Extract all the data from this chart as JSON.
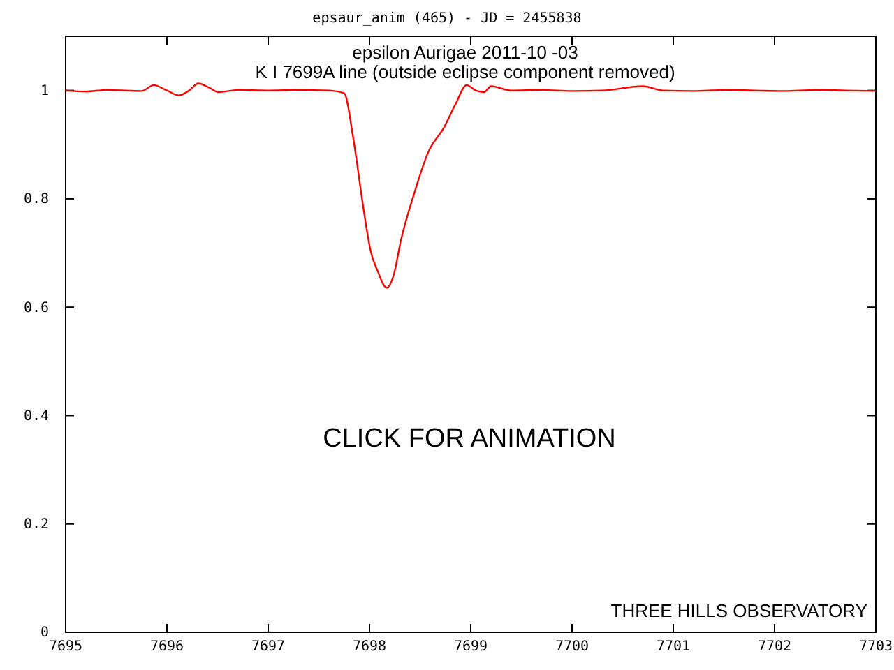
{
  "chart_data": {
    "type": "line",
    "title": "epsaur_anim (465) - JD = 2455838",
    "annotations": [
      "epsilon Aurigae 2011-10 -03",
      "K I 7699A line (outside eclipse component removed)",
      "CLICK FOR ANIMATION",
      "THREE HILLS OBSERVATORY"
    ],
    "series": [
      {
        "color": "#ff0000",
        "x": [
          7695,
          7695.2,
          7695.4,
          7695.6,
          7695.75,
          7695.87,
          7696,
          7696.12,
          7696.22,
          7696.31,
          7696.42,
          7696.51,
          7696.7,
          7697,
          7697.3,
          7697.6,
          7697.75,
          7697.84,
          7697.94,
          7698.01,
          7698.08,
          7698.17,
          7698.24,
          7698.31,
          7698.44,
          7698.58,
          7698.74,
          7698.85,
          7698.96,
          7699.05,
          7699.13,
          7699.2,
          7699.4,
          7699.7,
          7700,
          7700.3,
          7700.7,
          7700.9,
          7701.2,
          7701.5,
          7701.8,
          7702.1,
          7702.4,
          7702.7,
          7703
        ],
        "values": [
          1.0,
          0.998,
          1.001,
          1.0,
          0.999,
          1.01,
          1.0,
          0.991,
          1.0,
          1.013,
          1.005,
          0.997,
          1.001,
          1.0,
          1.001,
          1.0,
          0.995,
          0.912,
          0.783,
          0.705,
          0.667,
          0.636,
          0.66,
          0.723,
          0.809,
          0.886,
          0.933,
          0.975,
          1.01,
          1.0,
          0.997,
          1.008,
          1.0,
          1.001,
          0.999,
          1.0,
          1.008,
          1.0,
          0.999,
          1.001,
          1.0,
          0.999,
          1.001,
          1.0,
          0.999
        ]
      }
    ],
    "xlim": [
      7695,
      7703
    ],
    "xticks": [
      7695,
      7696,
      7697,
      7698,
      7699,
      7700,
      7701,
      7702,
      7703
    ],
    "ylim": [
      0,
      1.1
    ],
    "yticks": [
      0,
      0.2,
      0.4,
      0.6,
      0.8,
      1
    ],
    "grid": false,
    "marker": "none",
    "line_style": "solid"
  }
}
